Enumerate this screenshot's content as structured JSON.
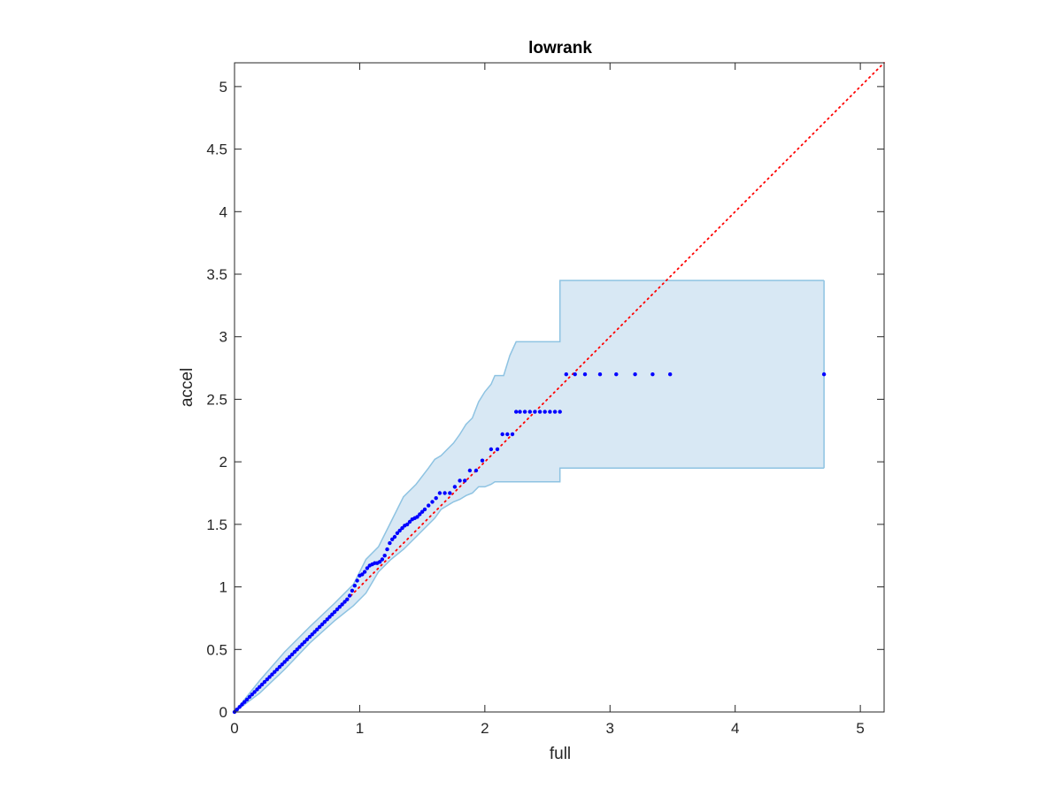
{
  "chart_data": {
    "type": "scatter",
    "title": "lowrank",
    "xlabel": "full",
    "ylabel": "accel",
    "xlim": [
      0,
      5.19
    ],
    "ylim": [
      0,
      5.19
    ],
    "xticks": [
      0,
      1,
      2,
      3,
      4,
      5
    ],
    "xtick_labels": [
      "0",
      "1",
      "2",
      "3",
      "4",
      "5"
    ],
    "yticks": [
      0,
      0.5,
      1,
      1.5,
      2,
      2.5,
      3,
      3.5,
      4,
      4.5,
      5
    ],
    "ytick_labels": [
      "0",
      "0.5",
      "1",
      "1.5",
      "2",
      "2.5",
      "3",
      "3.5",
      "4",
      "4.5",
      "5"
    ],
    "grid": false,
    "legend": false,
    "colors": {
      "points": "#0000ff",
      "reference_line": "#ff0000",
      "band_fill": "#d8e8f4",
      "band_edge": "#8ec3e2",
      "axes": "#262626"
    },
    "points": {
      "x": [
        0.0,
        0.02,
        0.04,
        0.06,
        0.08,
        0.1,
        0.12,
        0.14,
        0.16,
        0.18,
        0.2,
        0.22,
        0.24,
        0.26,
        0.28,
        0.3,
        0.32,
        0.34,
        0.36,
        0.38,
        0.4,
        0.42,
        0.44,
        0.46,
        0.48,
        0.5,
        0.52,
        0.54,
        0.56,
        0.58,
        0.6,
        0.62,
        0.64,
        0.66,
        0.68,
        0.7,
        0.72,
        0.74,
        0.76,
        0.78,
        0.8,
        0.82,
        0.84,
        0.86,
        0.88,
        0.9,
        0.92,
        0.94,
        0.96,
        0.98,
        1.0,
        1.02,
        1.04,
        1.06,
        1.08,
        1.1,
        1.12,
        1.14,
        1.16,
        1.18,
        1.2,
        1.22,
        1.24,
        1.26,
        1.28,
        1.3,
        1.32,
        1.34,
        1.36,
        1.38,
        1.4,
        1.42,
        1.44,
        1.46,
        1.48,
        1.5,
        1.52,
        1.55,
        1.58,
        1.61,
        1.64,
        1.68,
        1.72,
        1.76,
        1.8,
        1.84,
        1.88,
        1.93,
        1.98,
        2.05,
        2.1,
        2.14,
        2.18,
        2.22,
        2.25,
        2.28,
        2.32,
        2.36,
        2.4,
        2.44,
        2.48,
        2.52,
        2.56,
        2.6,
        2.65,
        2.72,
        2.8,
        2.92,
        3.05,
        3.2,
        3.34,
        3.48,
        4.71
      ],
      "y": [
        0.0,
        0.02,
        0.04,
        0.06,
        0.08,
        0.1,
        0.12,
        0.14,
        0.16,
        0.18,
        0.2,
        0.22,
        0.24,
        0.26,
        0.28,
        0.3,
        0.32,
        0.34,
        0.36,
        0.38,
        0.4,
        0.42,
        0.44,
        0.46,
        0.48,
        0.5,
        0.52,
        0.54,
        0.56,
        0.58,
        0.6,
        0.62,
        0.64,
        0.66,
        0.68,
        0.7,
        0.72,
        0.74,
        0.76,
        0.78,
        0.8,
        0.82,
        0.84,
        0.86,
        0.88,
        0.9,
        0.93,
        0.97,
        1.01,
        1.05,
        1.09,
        1.1,
        1.12,
        1.15,
        1.17,
        1.18,
        1.19,
        1.19,
        1.2,
        1.22,
        1.25,
        1.3,
        1.35,
        1.38,
        1.4,
        1.43,
        1.45,
        1.47,
        1.49,
        1.5,
        1.52,
        1.54,
        1.55,
        1.56,
        1.58,
        1.6,
        1.62,
        1.65,
        1.68,
        1.71,
        1.75,
        1.75,
        1.75,
        1.8,
        1.85,
        1.85,
        1.93,
        1.93,
        2.01,
        2.1,
        2.1,
        2.22,
        2.22,
        2.22,
        2.4,
        2.4,
        2.4,
        2.4,
        2.4,
        2.4,
        2.4,
        2.4,
        2.4,
        2.4,
        2.7,
        2.7,
        2.7,
        2.7,
        2.7,
        2.7,
        2.7,
        2.7,
        2.7
      ]
    },
    "reference_line": {
      "x": [
        0,
        5.19
      ],
      "y": [
        0,
        5.19
      ],
      "style": "dotted"
    },
    "confidence_band": {
      "x": [
        0.0,
        0.2,
        0.4,
        0.6,
        0.8,
        0.95,
        1.05,
        1.15,
        1.25,
        1.35,
        1.45,
        1.55,
        1.6,
        1.65,
        1.75,
        1.8,
        1.85,
        1.9,
        1.95,
        2.0,
        2.05,
        2.08,
        2.1,
        2.15,
        2.2,
        2.25,
        2.35,
        2.45,
        2.55,
        2.6,
        2.6,
        4.71
      ],
      "upper": [
        0.0,
        0.25,
        0.48,
        0.68,
        0.87,
        1.02,
        1.22,
        1.32,
        1.52,
        1.72,
        1.82,
        1.95,
        2.02,
        2.05,
        2.15,
        2.22,
        2.3,
        2.35,
        2.48,
        2.56,
        2.62,
        2.69,
        2.69,
        2.69,
        2.85,
        2.96,
        2.96,
        2.96,
        2.96,
        2.96,
        3.45,
        3.45
      ],
      "lower": [
        0.0,
        0.15,
        0.34,
        0.55,
        0.73,
        0.85,
        0.95,
        1.12,
        1.22,
        1.3,
        1.4,
        1.5,
        1.55,
        1.62,
        1.68,
        1.7,
        1.73,
        1.75,
        1.8,
        1.8,
        1.82,
        1.84,
        1.84,
        1.84,
        1.84,
        1.84,
        1.84,
        1.84,
        1.84,
        1.84,
        1.95,
        1.95
      ]
    }
  }
}
